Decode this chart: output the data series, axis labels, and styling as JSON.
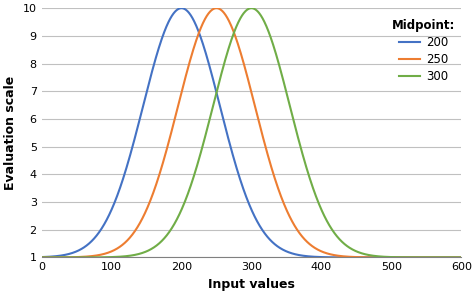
{
  "midpoints": [
    200,
    250,
    300
  ],
  "colors": [
    "#4472C4",
    "#ED7D31",
    "#70AD47"
  ],
  "legend_title": "Midpoint:",
  "legend_labels": [
    "200",
    "250",
    "300"
  ],
  "xlabel": "Input values",
  "ylabel": "Evaluation scale",
  "xlim": [
    0,
    600
  ],
  "ylim": [
    1,
    10
  ],
  "xticks": [
    0,
    100,
    200,
    300,
    400,
    500,
    600
  ],
  "yticks": [
    1,
    2,
    3,
    4,
    5,
    6,
    7,
    8,
    9,
    10
  ],
  "sigma": 55,
  "amplitude": 9,
  "baseline": 1,
  "x_min": 0,
  "x_max": 600,
  "n_points": 1000,
  "figsize": [
    4.76,
    2.95
  ],
  "dpi": 100
}
